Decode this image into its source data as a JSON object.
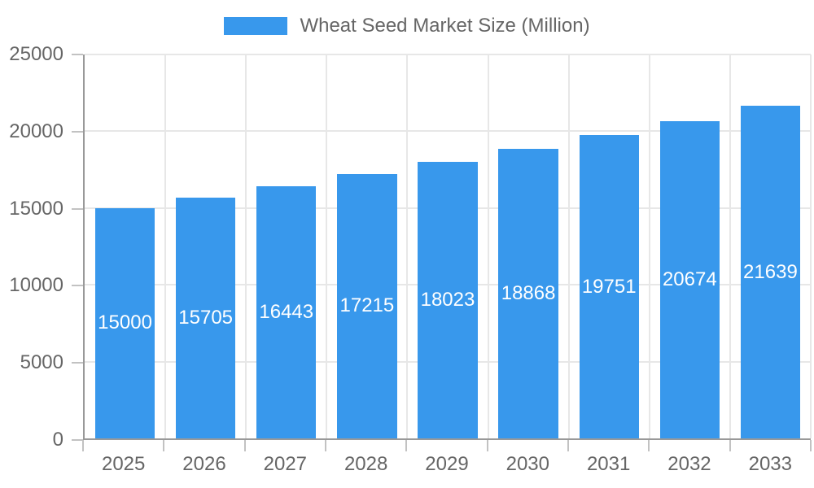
{
  "chart_data": {
    "type": "bar",
    "title": "Wheat Seed Market Size (Million)",
    "categories": [
      "2025",
      "2026",
      "2027",
      "2028",
      "2029",
      "2030",
      "2031",
      "2032",
      "2033"
    ],
    "values": [
      15000,
      15705,
      16443,
      17215,
      18023,
      18868,
      19751,
      20674,
      21639
    ],
    "series": [
      {
        "name": "Wheat Seed Market Size (Million)",
        "values": [
          15000,
          15705,
          16443,
          17215,
          18023,
          18868,
          19751,
          20674,
          21639
        ]
      }
    ],
    "xlabel": "",
    "ylabel": "",
    "ylim": [
      0,
      25000
    ],
    "yticks": [
      0,
      5000,
      10000,
      15000,
      20000,
      25000
    ],
    "grid": "horizontal and vertical light gray gridlines",
    "legend_position": "top-center",
    "value_labels": "white numbers centered inside each bar"
  },
  "legend": {
    "label": "Wheat Seed Market Size (Million)"
  },
  "colors": {
    "bar": "#3898EC",
    "grid": "#E7E7E7",
    "axis": "#999999",
    "tick": "#C2C2C2",
    "text": "#666666",
    "value_text": "#FFFFFF",
    "background": "#FFFFFF"
  }
}
